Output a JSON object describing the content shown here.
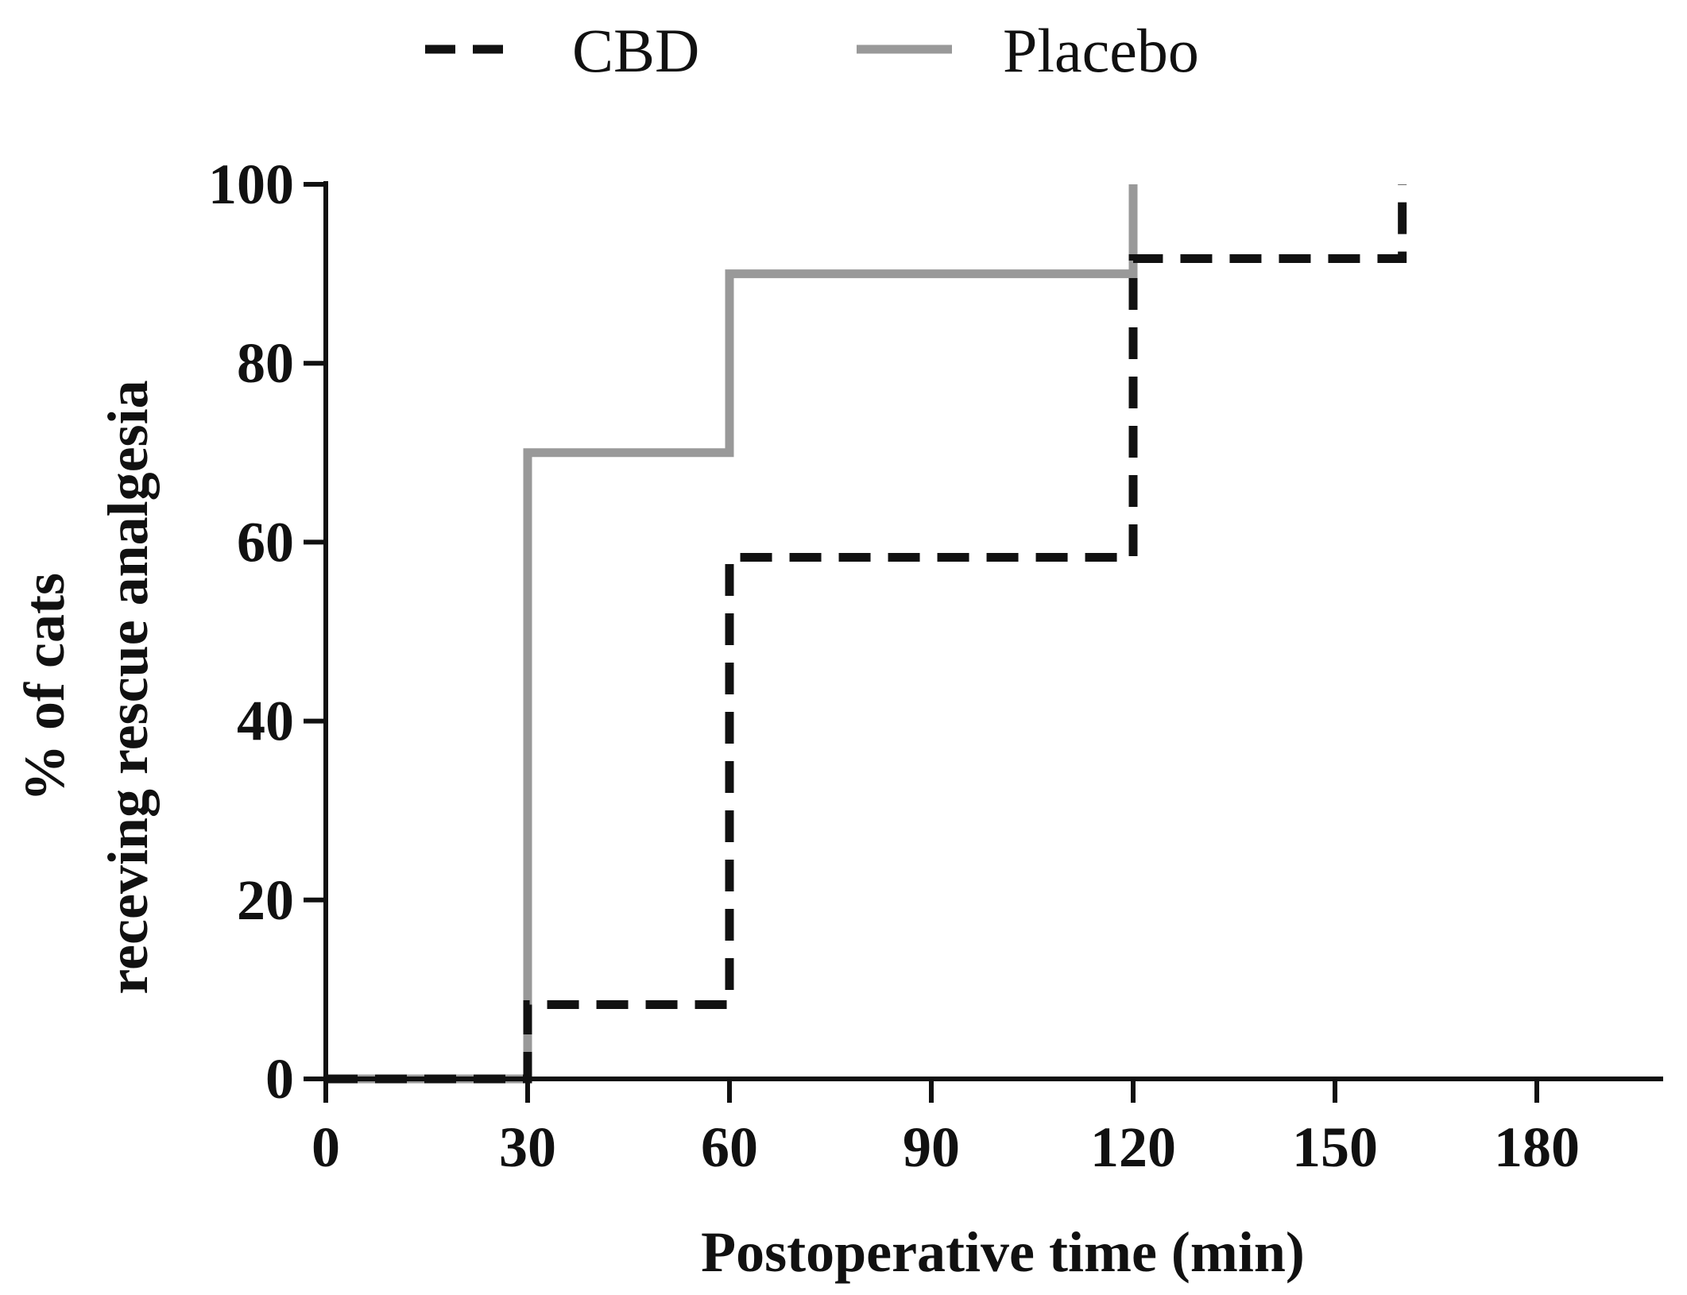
{
  "chart_data": {
    "type": "line",
    "subtype": "step",
    "title": "",
    "xlabel": "Postoperative time (min)",
    "ylabel_lines": [
      "% of cats",
      "receving rescue analgesia"
    ],
    "xlim": [
      0,
      195
    ],
    "ylim": [
      0,
      100
    ],
    "xticks": [
      0,
      30,
      60,
      90,
      120,
      150,
      180
    ],
    "yticks": [
      0,
      20,
      40,
      60,
      80,
      100
    ],
    "xtick_labels": [
      "0",
      "30",
      "60",
      "90",
      "120",
      "150",
      "180"
    ],
    "ytick_labels": [
      "0",
      "20",
      "40",
      "60",
      "80",
      "100"
    ],
    "legend_position": "top-center",
    "series": [
      {
        "name": "CBD",
        "color": "#111111",
        "style": "dashed",
        "steps": [
          [
            0,
            0
          ],
          [
            30,
            8.3
          ],
          [
            60,
            58.3
          ],
          [
            120,
            91.7
          ],
          [
            160,
            100
          ]
        ],
        "end_x": 160
      },
      {
        "name": "Placebo",
        "color": "#999999",
        "style": "solid",
        "steps": [
          [
            0,
            0
          ],
          [
            30,
            70
          ],
          [
            60,
            90
          ],
          [
            120,
            100
          ]
        ],
        "end_x": 120
      }
    ]
  }
}
